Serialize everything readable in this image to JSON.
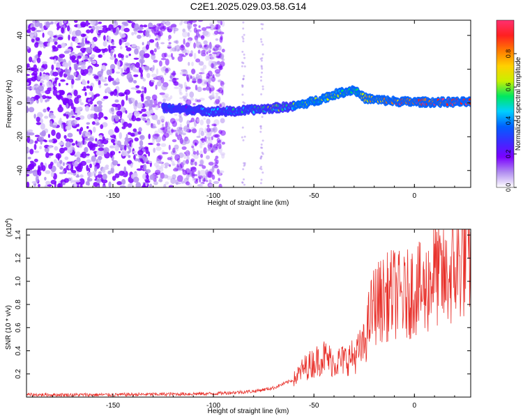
{
  "title": "C2E1.2025.029.03.58.G14",
  "colors": {
    "snr_line": "#e8302a",
    "axis": "#000000",
    "colormap": [
      "#ffffff",
      "#b08cf0",
      "#7a00ff",
      "#3b2cff",
      "#0060ff",
      "#00d0ff",
      "#00e860",
      "#c8f000",
      "#ffd000",
      "#ff7a00",
      "#ff2020",
      "#ff3070"
    ]
  },
  "chart_data": [
    {
      "type": "heatmap",
      "title": "C2E1.2025.029.03.58.G14",
      "xlabel": "Height of straight line (km)",
      "ylabel": "Frequency (Hz)",
      "xlim": [
        -193,
        28
      ],
      "ylim": [
        -50,
        49
      ],
      "xticks": [
        "-150",
        "-100",
        "-50",
        "0"
      ],
      "yticks": [
        "-40",
        "-20",
        "0",
        "20",
        "40"
      ],
      "colorbar": {
        "label": "Normalized spectral amplitude",
        "range": [
          0,
          1
        ],
        "ticks": [
          "0.0",
          "0.2",
          "0.4",
          "0.6",
          "0.8"
        ]
      },
      "ridge": {
        "x": [
          -125,
          -110,
          -100,
          -90,
          -80,
          -70,
          -60,
          -50,
          -40,
          -30,
          -25,
          -20,
          -10,
          0,
          10,
          20,
          28
        ],
        "y": [
          -3,
          -4,
          -5,
          -5,
          -4,
          -3,
          -2,
          1,
          5,
          8,
          3,
          2,
          1,
          0.5,
          0.5,
          0.5,
          0.5
        ],
        "amplitude": [
          0.25,
          0.3,
          0.35,
          0.4,
          0.45,
          0.5,
          0.55,
          0.55,
          0.6,
          0.6,
          0.65,
          0.7,
          0.85,
          0.9,
          0.9,
          0.92,
          0.95
        ]
      }
    },
    {
      "type": "line",
      "xlabel": "Height of straight line (km)",
      "ylabel": "SNR (10 * v/v)",
      "y_multiplier": "(x10",
      "y_multiplier_exp": "4",
      "y_multiplier_close": ")",
      "xlim": [
        -193,
        28
      ],
      "ylim": [
        0,
        1.45
      ],
      "xticks": [
        "-150",
        "-100",
        "-50",
        "0"
      ],
      "yticks": [
        "0.2",
        "0.4",
        "0.6",
        "0.8",
        "1.0",
        "1.2",
        "1.4"
      ],
      "series": [
        {
          "x": [
            -193,
            -150,
            -100,
            -80,
            -70,
            -60,
            -55,
            -50,
            -45,
            -40,
            -35,
            -30,
            -25,
            -22,
            -20,
            -15,
            -10,
            -5,
            0,
            5,
            10,
            15,
            20,
            25,
            28
          ],
          "y": [
            0.02,
            0.02,
            0.03,
            0.05,
            0.08,
            0.15,
            0.25,
            0.3,
            0.35,
            0.3,
            0.32,
            0.35,
            0.45,
            0.7,
            0.8,
            0.85,
            0.9,
            0.85,
            0.95,
            0.9,
            1.1,
            1.0,
            1.1,
            1.2,
            1.25
          ]
        }
      ]
    }
  ]
}
